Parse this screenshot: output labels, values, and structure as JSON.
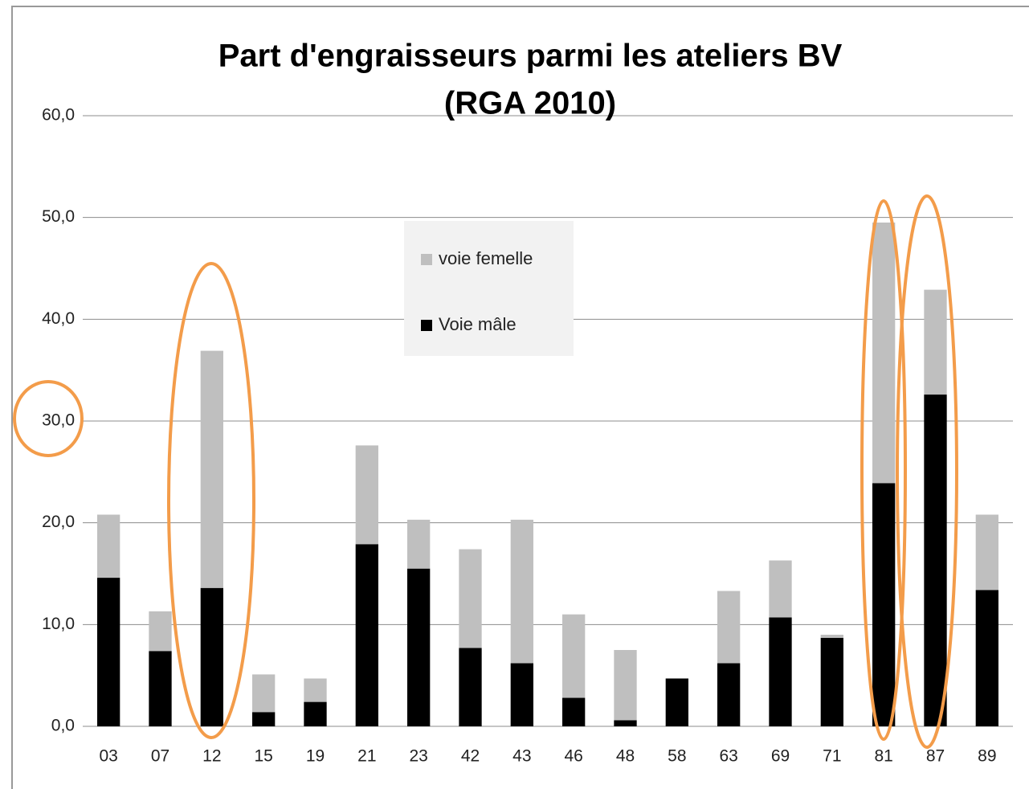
{
  "chart_data": {
    "type": "stacked_bar",
    "title": [
      "Part d'engraisseurs parmi les ateliers BV",
      "(RGA 2010)"
    ],
    "categories": [
      "03",
      "07",
      "12",
      "15",
      "19",
      "21",
      "23",
      "42",
      "43",
      "46",
      "48",
      "58",
      "63",
      "69",
      "71",
      "81",
      "87",
      "89"
    ],
    "series": [
      {
        "name": "Voie mâle",
        "color": "#000000",
        "values": [
          14.6,
          7.4,
          13.6,
          1.4,
          2.4,
          17.9,
          15.5,
          7.7,
          6.2,
          2.8,
          0.6,
          4.7,
          6.2,
          10.7,
          8.7,
          23.9,
          32.6,
          13.4
        ]
      },
      {
        "name": "voie femelle",
        "color": "#bfbfbf",
        "values": [
          6.2,
          3.9,
          23.3,
          3.7,
          2.3,
          9.7,
          4.8,
          9.7,
          14.1,
          8.2,
          6.9,
          0,
          7.1,
          5.6,
          0.3,
          25.6,
          10.3,
          7.4
        ]
      }
    ],
    "ylim": [
      0,
      60
    ],
    "yticks": [
      {
        "value": 0,
        "label": "0,0"
      },
      {
        "value": 10,
        "label": "10,0"
      },
      {
        "value": 20,
        "label": "20,0"
      },
      {
        "value": 30,
        "label": "30,0"
      },
      {
        "value": 40,
        "label": "40,0"
      },
      {
        "value": 50,
        "label": "50,0"
      },
      {
        "value": 60,
        "label": "60,0"
      }
    ],
    "grid": true,
    "legend": "center"
  }
}
